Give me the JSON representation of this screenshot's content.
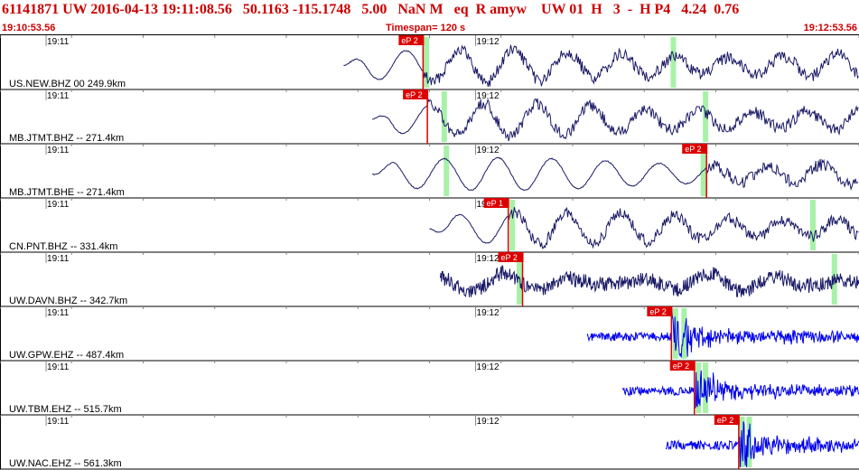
{
  "header": {
    "title": "61141871 UW 2016-04-13 19:11:08.56   50.1163 -115.1748   5.00   NaN M   eq  R amyw    UW 01  H   3  -  H P4   4.24  0.76",
    "time_start": "19:10:53.56",
    "timespan": "Timespan= 120 s",
    "time_end": "19:12:53.56"
  },
  "colors": {
    "header_text": "#cc0000",
    "trace_dark": "#1a1a66",
    "trace_blue": "#0000ee",
    "pick_marker": "#dd0000",
    "window_bar": "#99ee99",
    "tick_gray": "#888888"
  },
  "chart_data": {
    "type": "line",
    "title": "",
    "x_axis": {
      "unit": "s",
      "range": [
        0,
        120
      ],
      "start_time": "19:10:53.56",
      "minute_ticks": [
        {
          "label": "19:11",
          "t": 6.44
        },
        {
          "label": "19:12",
          "t": 66.44
        }
      ]
    },
    "traces": [
      {
        "label": "US.NEW.BHZ 00 249.9km",
        "pick": "eP 2",
        "pick_t": 59.1,
        "data_start_t": 48.0,
        "color": "dark",
        "style": "surface",
        "window_t": [
          59.5,
          94.0
        ]
      },
      {
        "label": "MB.JTMT.BHZ -- 271.4km",
        "pick": "eP 2",
        "pick_t": 59.7,
        "data_start_t": 52.0,
        "color": "dark",
        "style": "surface",
        "window_t": [
          62.0,
          98.5
        ]
      },
      {
        "label": "MB.JTMT.BHE -- 271.4km",
        "pick": "eP 2",
        "pick_t": 98.7,
        "data_start_t": 52.0,
        "color": "dark",
        "style": "surface",
        "window_t": [
          62.3,
          98.2
        ]
      },
      {
        "label": "CN.PNT.BHZ -- 331.4km",
        "pick": "eP 1",
        "pick_t": 71.0,
        "data_start_t": 60.0,
        "color": "dark",
        "style": "surface",
        "window_t": [
          71.5,
          113.5
        ]
      },
      {
        "label": "UW.DAVN.BHZ -- 342.7km",
        "pick": "eP 2",
        "pick_t": 73.0,
        "data_start_t": 61.5,
        "color": "dark",
        "style": "noisy",
        "window_t": [
          72.5,
          116.5
        ]
      },
      {
        "label": "UW.GPW.EHZ -- 487.4km",
        "pick": "eP 2",
        "pick_t": 93.8,
        "data_start_t": 82.0,
        "color": "blue",
        "style": "quake",
        "window_t": [
          94.3,
          95.5
        ]
      },
      {
        "label": "UW.TBM.EHZ -- 515.7km",
        "pick": "eP 2",
        "pick_t": 97.0,
        "data_start_t": 87.0,
        "color": "blue",
        "style": "quake",
        "window_t": [
          97.5,
          98.5
        ]
      },
      {
        "label": "UW.NAC.EHZ -- 561.3km",
        "pick": "eP 2",
        "pick_t": 103.2,
        "data_start_t": 93.0,
        "color": "blue",
        "style": "quake",
        "window_t": [
          103.6,
          104.6
        ]
      }
    ]
  }
}
